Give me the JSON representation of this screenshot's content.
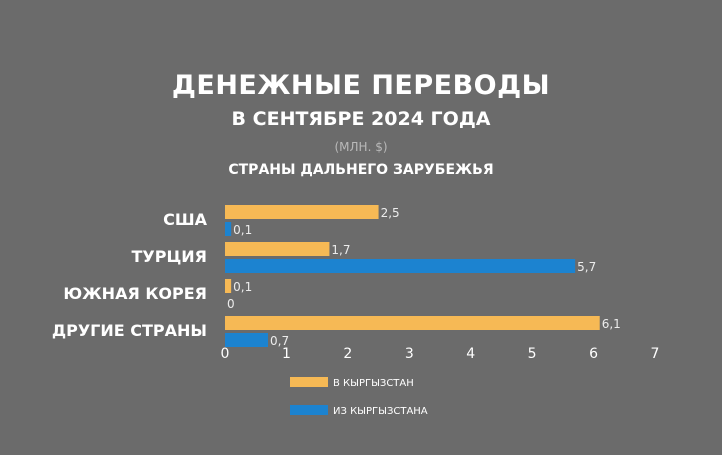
{
  "title": "ДЕНЕЖНЫЕ ПЕРЕВОДЫ",
  "subtitle": "В СЕНТЯБРЕ 2024 ГОДА",
  "unit": "(МЛН. $)",
  "region": "СТРАНЫ ДАЛЬНЕГО ЗАРУБЕЖЬЯ",
  "colors": {
    "background": "#6b6b6b",
    "inbound": "#f6b955",
    "outbound": "#1c83d0"
  },
  "chart_data": {
    "type": "bar",
    "orientation": "horizontal",
    "categories": [
      "США",
      "ТУРЦИЯ",
      "ЮЖНАЯ КОРЕЯ",
      "ДРУГИЕ СТРАНЫ"
    ],
    "series": [
      {
        "name": "В КЫРГЫЗСТАН",
        "values": [
          2.5,
          1.7,
          0.1,
          6.1
        ],
        "labels": [
          "2,5",
          "1,7",
          "0,1",
          "6,1"
        ],
        "color": "#f6b955"
      },
      {
        "name": "ИЗ КЫРГЫЗСТАНА",
        "values": [
          0.1,
          5.7,
          0,
          0.7
        ],
        "labels": [
          "0,1",
          "5,7",
          "0",
          "0,7"
        ],
        "color": "#1c83d0"
      }
    ],
    "xlim": [
      0,
      7
    ],
    "xticks": [
      "0",
      "1",
      "2",
      "3",
      "4",
      "5",
      "6",
      "7"
    ],
    "grid": false,
    "legend_position": "bottom"
  }
}
